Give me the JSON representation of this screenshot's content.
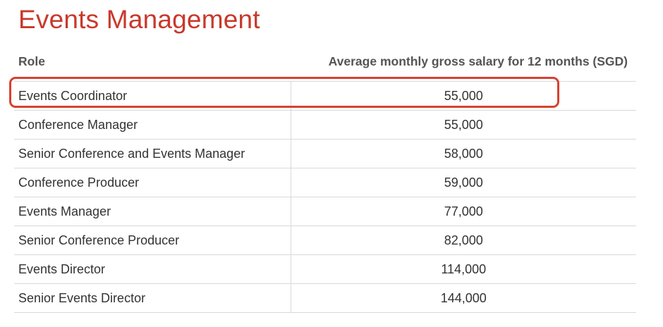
{
  "title": "Events Management",
  "table": {
    "headers": {
      "role": "Role",
      "salary": "Average monthly gross salary for 12 months (SGD)"
    },
    "rows": [
      {
        "role": "Events Coordinator",
        "salary": "55,000",
        "highlighted": true
      },
      {
        "role": "Conference Manager",
        "salary": "55,000"
      },
      {
        "role": "Senior Conference and Events Manager",
        "salary": "58,000"
      },
      {
        "role": "Conference Producer",
        "salary": "59,000"
      },
      {
        "role": "Events Manager",
        "salary": "77,000"
      },
      {
        "role": "Senior Conference Producer",
        "salary": "82,000"
      },
      {
        "role": "Events Director",
        "salary": "114,000"
      },
      {
        "role": "Senior Events Director",
        "salary": "144,000"
      }
    ]
  },
  "colors": {
    "title": "#c8392b",
    "highlight": "#d9402f",
    "rule": "#d9d9d9"
  }
}
